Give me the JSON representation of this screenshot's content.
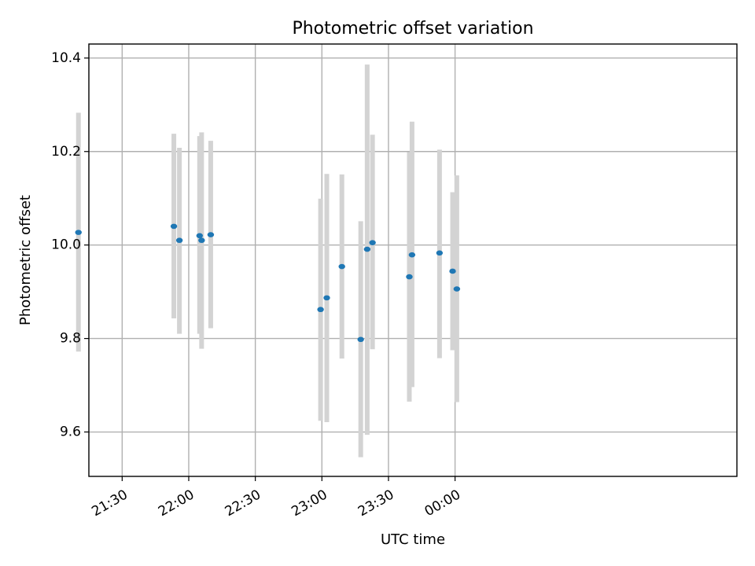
{
  "chart_data": {
    "type": "scatter",
    "title": "Photometric offset variation",
    "xlabel": "UTC time",
    "ylabel": "Photometric offset",
    "grid": true,
    "colors": {
      "point": "#1f77b4",
      "errorbar": "#d3d3d3"
    },
    "xlim_minutes": [
      1275,
      1567
    ],
    "ylim": [
      9.505,
      10.43
    ],
    "xticks": [
      {
        "minutes": 1290,
        "label": "21:30"
      },
      {
        "minutes": 1320,
        "label": "22:00"
      },
      {
        "minutes": 1350,
        "label": "22:30"
      },
      {
        "minutes": 1380,
        "label": "23:00"
      },
      {
        "minutes": 1410,
        "label": "23:30"
      },
      {
        "minutes": 1440,
        "label": "00:00"
      }
    ],
    "yticks": [
      {
        "value": 9.6,
        "label": "9.6"
      },
      {
        "value": 9.8,
        "label": "9.8"
      },
      {
        "value": 10.0,
        "label": "10.0"
      },
      {
        "value": 10.2,
        "label": "10.2"
      },
      {
        "value": 10.4,
        "label": "10.4"
      }
    ],
    "points": [
      {
        "t": 1270.3,
        "y": 10.027,
        "lo": 9.772,
        "hi": 10.283
      },
      {
        "t": 1313.3,
        "y": 10.04,
        "lo": 9.843,
        "hi": 10.238
      },
      {
        "t": 1315.8,
        "y": 10.01,
        "lo": 9.81,
        "hi": 10.208
      },
      {
        "t": 1324.9,
        "y": 10.02,
        "lo": 9.81,
        "hi": 10.233
      },
      {
        "t": 1325.8,
        "y": 10.01,
        "lo": 9.778,
        "hi": 10.241
      },
      {
        "t": 1329.9,
        "y": 10.022,
        "lo": 9.822,
        "hi": 10.223
      },
      {
        "t": 1379.4,
        "y": 9.862,
        "lo": 9.624,
        "hi": 10.099
      },
      {
        "t": 1382.2,
        "y": 9.887,
        "lo": 9.621,
        "hi": 10.152
      },
      {
        "t": 1389.0,
        "y": 9.954,
        "lo": 9.757,
        "hi": 10.151
      },
      {
        "t": 1397.5,
        "y": 9.798,
        "lo": 9.546,
        "hi": 10.051
      },
      {
        "t": 1400.4,
        "y": 9.991,
        "lo": 9.594,
        "hi": 10.386
      },
      {
        "t": 1402.8,
        "y": 10.005,
        "lo": 9.777,
        "hi": 10.236
      },
      {
        "t": 1419.4,
        "y": 9.932,
        "lo": 9.665,
        "hi": 10.199
      },
      {
        "t": 1420.6,
        "y": 9.979,
        "lo": 9.696,
        "hi": 10.264
      },
      {
        "t": 1433.0,
        "y": 9.983,
        "lo": 9.758,
        "hi": 10.204
      },
      {
        "t": 1438.9,
        "y": 9.944,
        "lo": 9.775,
        "hi": 10.113
      },
      {
        "t": 1440.8,
        "y": 9.906,
        "lo": 9.664,
        "hi": 10.149
      }
    ]
  }
}
